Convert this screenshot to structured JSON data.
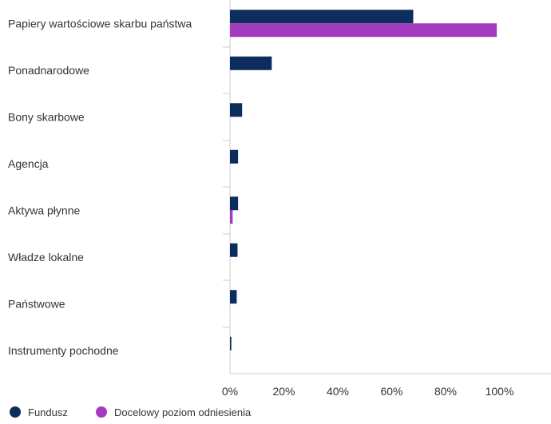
{
  "chart_data": {
    "type": "bar",
    "orientation": "horizontal",
    "categories": [
      "Papiery wartościowe skarbu państwa",
      "Ponadnarodowe",
      "Bony skarbowe",
      "Agencja",
      "Aktywa płynne",
      "Władze lokalne",
      "Państwowe",
      "Instrumenty pochodne"
    ],
    "series": [
      {
        "name": "Fundusz",
        "color": "#0c2d5e",
        "values": [
          68.0,
          15.5,
          4.5,
          3.0,
          3.0,
          2.8,
          2.5,
          0.5
        ]
      },
      {
        "name": "Docelowy poziom odniesienia",
        "color": "#a23bbf",
        "values": [
          99.0,
          0,
          0,
          0,
          1.0,
          0,
          0,
          0
        ]
      }
    ],
    "x_ticks": [
      "0%",
      "20%",
      "40%",
      "60%",
      "80%",
      "100%"
    ],
    "xlim": [
      0,
      120
    ],
    "grid": false,
    "legend_position": "bottom-left"
  }
}
